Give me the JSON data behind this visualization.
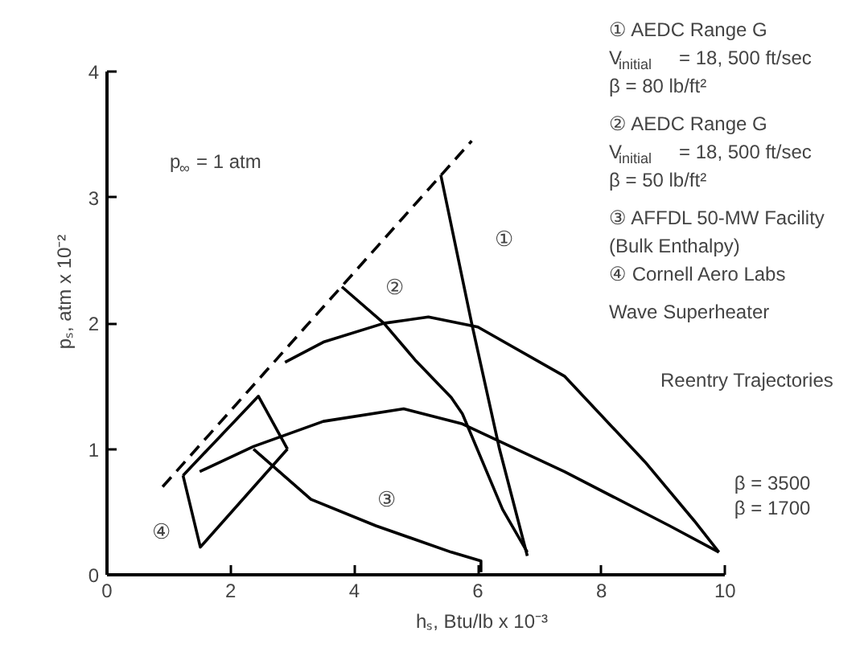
{
  "chart_data": {
    "type": "line",
    "xlabel": "hₛ, Btu/lb x 10⁻³",
    "ylabel": "pₛ, atm x 10⁻²",
    "xlim": [
      0,
      10
    ],
    "ylim": [
      0,
      4
    ],
    "xticks": [
      0,
      2,
      4,
      6,
      8,
      10
    ],
    "yticks": [
      0,
      1,
      2,
      3,
      4
    ],
    "grid": false,
    "marker": "none",
    "series": [
      {
        "color": "#000000",
        "line_style": "dashed",
        "x": [
          0.9,
          5.9
        ],
        "values": [
          0.7,
          3.45
        ]
      },
      {
        "color": "#000000",
        "x": [
          5.4,
          5.9,
          6.35,
          6.8
        ],
        "values": [
          3.18,
          2.0,
          1.0,
          0.15
        ]
      },
      {
        "color": "#000000",
        "x": [
          3.8,
          4.48,
          5.0,
          5.57,
          5.75,
          6.4,
          6.8
        ],
        "values": [
          2.29,
          2.0,
          1.7,
          1.41,
          1.28,
          0.52,
          0.18
        ]
      },
      {
        "color": "#000000",
        "x": [
          2.37,
          3.3,
          4.35,
          5.57,
          6.05,
          6.05
        ],
        "values": [
          1.0,
          0.6,
          0.39,
          0.18,
          0.11,
          0.02
        ]
      },
      {
        "name": "β = 3500",
        "color": "#000000",
        "x": [
          2.88,
          3.5,
          4.48,
          5.2,
          6.0,
          7.4,
          8.7,
          9.5,
          9.9
        ],
        "values": [
          1.69,
          1.85,
          2.0,
          2.05,
          1.97,
          1.58,
          0.9,
          0.43,
          0.18
        ]
      },
      {
        "name": "β = 1700",
        "color": "#000000",
        "x": [
          1.5,
          2.37,
          3.5,
          4.8,
          5.75,
          7.4,
          9.1,
          9.9
        ],
        "values": [
          0.82,
          1.02,
          1.22,
          1.32,
          1.2,
          0.82,
          0.39,
          0.18
        ]
      },
      {
        "color": "#000000",
        "x": [
          1.23,
          1.51,
          2.92
        ],
        "values": [
          0.79,
          0.22,
          1.0
        ]
      },
      {
        "color": "#000000",
        "x": [
          1.23,
          2.45,
          2.92
        ],
        "values": [
          0.79,
          1.42,
          1.0
        ]
      }
    ],
    "annotations": [
      "①",
      "②",
      "③",
      "④",
      "p$_{∞}$ = 1 atm",
      "① AEDC Range G",
      "V$_{initial}$ = 18, 500 ft/sec",
      "β = 80 lb/ft²",
      "② AEDC Range G",
      "V$_{initial}$ = 18, 500 ft/sec",
      "β = 50 lb/ft²",
      "③ AFFDL 50-MW Facility",
      "(Bulk Enthalpy)",
      "④ Cornell Aero Labs",
      "Wave Superheater",
      "Reentry Trajectories"
    ]
  }
}
